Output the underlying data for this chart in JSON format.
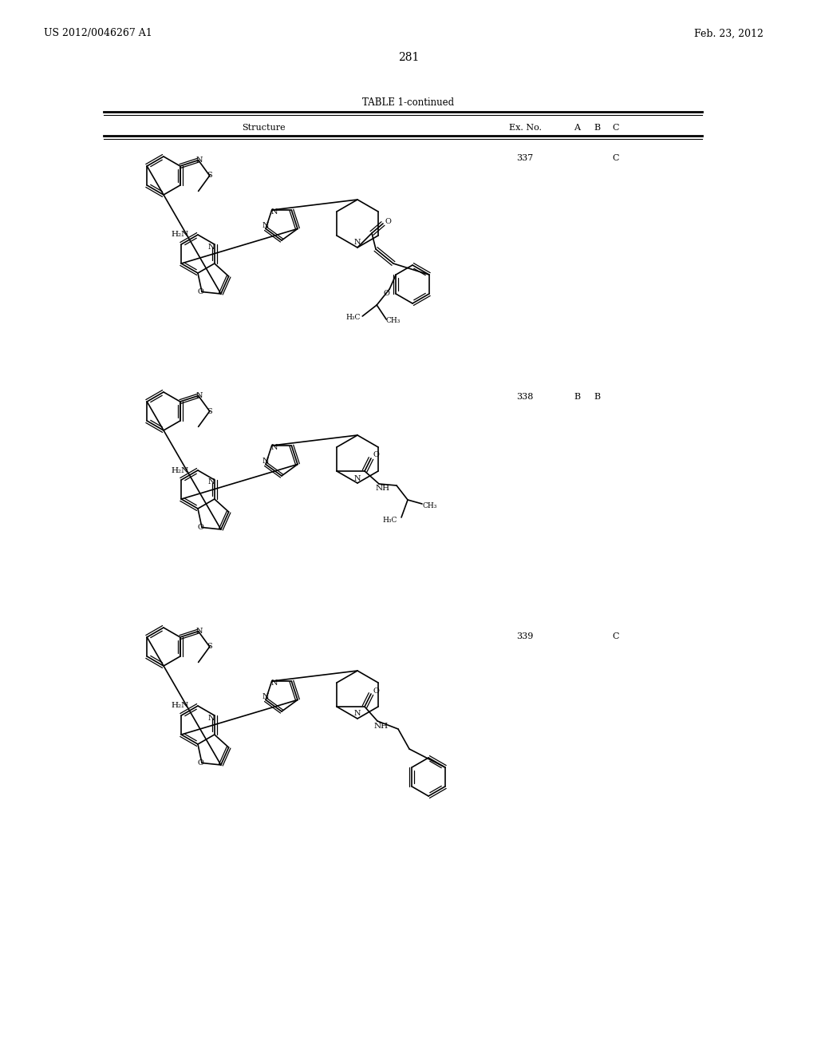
{
  "page_number": "281",
  "left_header": "US 2012/0046267 A1",
  "right_header": "Feb. 23, 2012",
  "table_title": "TABLE 1-continued",
  "col_structure": "Structure",
  "col_exno": "Ex. No.",
  "col_a": "A",
  "col_b": "B",
  "col_c": "C",
  "entries": [
    {
      "ex_no": "337",
      "a": "",
      "b": "",
      "c": "C"
    },
    {
      "ex_no": "338",
      "a": "B",
      "b": "B",
      "c": ""
    },
    {
      "ex_no": "339",
      "a": "",
      "b": "",
      "c": "C"
    }
  ],
  "bg_color": "#ffffff",
  "text_color": "#000000"
}
